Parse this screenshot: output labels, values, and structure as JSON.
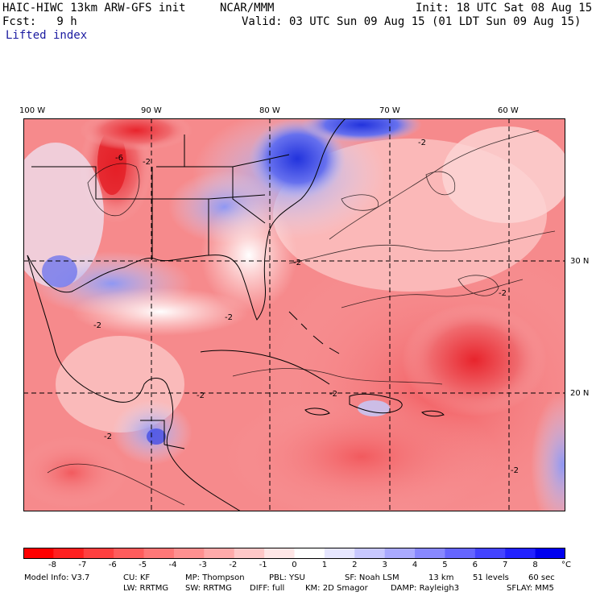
{
  "header": {
    "model": "HAIC-HIWC 13km ARW-GFS init",
    "org": "NCAR/MMM",
    "init": "Init: 18 UTC Sat 08 Aug 15",
    "fcst": "Fcst:   9 h",
    "valid": "Valid: 03 UTC Sun 09 Aug 15 (01 LDT Sun 09 Aug 15)",
    "field": "Lifted index"
  },
  "map": {
    "lon_labels": [
      "100 W",
      "90 W",
      "80 W",
      "70 W",
      "60 W"
    ],
    "lat_labels": [
      "30 N",
      "20 N"
    ],
    "contour_labels": [
      "-2",
      "-2",
      "-2",
      "-2",
      "-2",
      "-2",
      "-2",
      "-2",
      "-2",
      "-2",
      "-6"
    ],
    "colors": {
      "warm": "#e8474c",
      "cool": "#2b35d8",
      "neutral": "#ffffff"
    }
  },
  "colorbar": {
    "ticks": [
      "-8",
      "-7",
      "-6",
      "-5",
      "-4",
      "-3",
      "-2",
      "-1",
      "0",
      "1",
      "2",
      "3",
      "4",
      "5",
      "6",
      "7",
      "8"
    ],
    "unit": "°C",
    "colors": [
      "#ff0000",
      "#ff2020",
      "#ff4040",
      "#ff5c5c",
      "#ff7777",
      "#ff9090",
      "#ffaaaa",
      "#ffc8c8",
      "#ffe6e6",
      "#ffffff",
      "#e6e6ff",
      "#c8c8ff",
      "#aaaaff",
      "#8888ff",
      "#6666ff",
      "#4444ff",
      "#2222ff",
      "#0000ee"
    ]
  },
  "model_info": {
    "line1": [
      "Model Info: V3.7",
      "CU: KF",
      "MP: Thompson",
      "PBL: YSU",
      "SF: Noah LSM",
      "13 km",
      "51 levels",
      "60 sec"
    ],
    "line2": [
      "LW: RRTMG",
      "SW: RRTMG",
      "DIFF: full",
      "KM: 2D Smagor",
      "DAMP: Rayleigh3",
      "SFLAY: MM5"
    ]
  }
}
